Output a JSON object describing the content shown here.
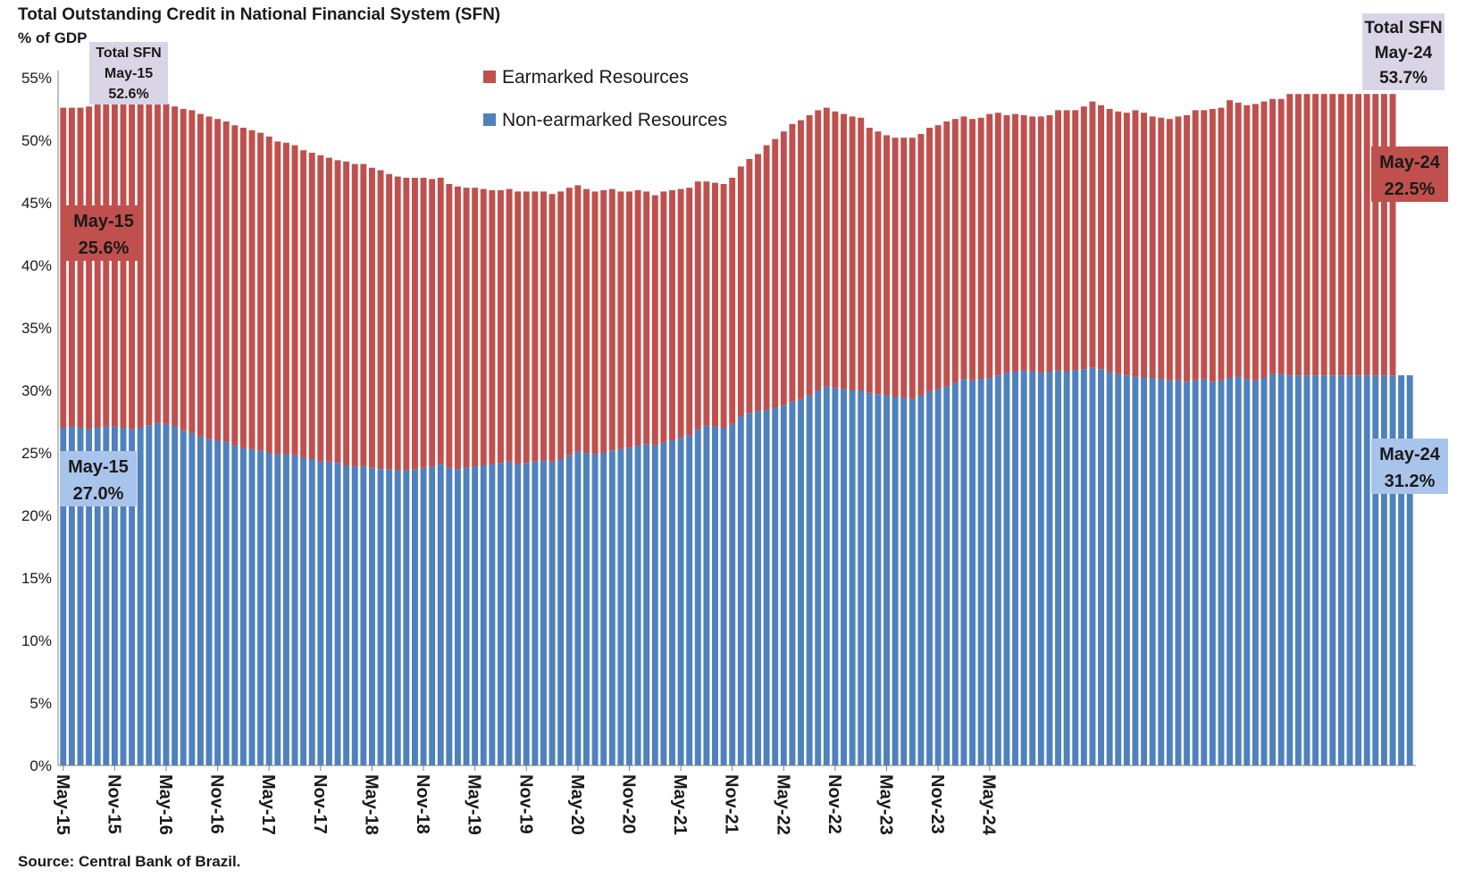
{
  "header": {
    "title": "Total Outstanding Credit in National Financial System (SFN)",
    "subtitle": "% of GDP"
  },
  "footer": {
    "source": "Source: Central Bank of Brazil."
  },
  "colors": {
    "earmarked": "#c0504d",
    "non_earmarked": "#4f81bd",
    "total_box": "#d9d5e6",
    "blue_box": "#a9c4eb"
  },
  "annotations": {
    "total_start": [
      "Total SFN",
      "May-15",
      "52.6%"
    ],
    "total_end": [
      "Total SFN",
      "May-24",
      "53.7%"
    ],
    "earmarked_start": [
      "May-15",
      "25.6%"
    ],
    "earmarked_end": [
      "May-24",
      "22.5%"
    ],
    "non_earmarked_start": [
      "May-15",
      "27.0%"
    ],
    "non_earmarked_end": [
      "May-24",
      "31.2%"
    ]
  },
  "chart_data": {
    "type": "bar",
    "stacked": true,
    "x_start": "May-15",
    "x_end": "May-24",
    "frequency": "monthly",
    "x_tick_labels": [
      "May-15",
      "Nov-15",
      "May-16",
      "Nov-16",
      "May-17",
      "Nov-17",
      "May-18",
      "Nov-18",
      "May-19",
      "Nov-19",
      "May-20",
      "Nov-20",
      "May-21",
      "Nov-21",
      "May-22",
      "Nov-22",
      "May-23",
      "Nov-23",
      "May-24"
    ],
    "y_tick_labels": [
      "0%",
      "5%",
      "10%",
      "15%",
      "20%",
      "25%",
      "30%",
      "35%",
      "40%",
      "45%",
      "50%",
      "55%"
    ],
    "ylim": [
      0,
      55
    ],
    "legend": [
      "Earmarked Resources",
      "Non-earmarked Resources"
    ],
    "legend_position": "top-center",
    "series": [
      {
        "name": "Non-earmarked Resources",
        "values": [
          27.0,
          27.1,
          27.0,
          26.9,
          27.0,
          27.1,
          27.1,
          27.0,
          26.9,
          27.0,
          27.2,
          27.4,
          27.3,
          27.1,
          26.8,
          26.6,
          26.3,
          26.1,
          26.0,
          25.9,
          25.6,
          25.4,
          25.3,
          25.2,
          25.0,
          24.9,
          24.9,
          24.8,
          24.6,
          24.5,
          24.3,
          24.3,
          24.2,
          24.0,
          23.9,
          23.9,
          23.8,
          23.7,
          23.7,
          23.6,
          23.6,
          23.7,
          23.8,
          23.9,
          24.1,
          23.8,
          23.7,
          23.8,
          23.9,
          24.0,
          24.1,
          24.2,
          24.3,
          24.1,
          24.2,
          24.3,
          24.4,
          24.3,
          24.5,
          24.8,
          25.1,
          25.0,
          24.9,
          25.0,
          25.2,
          25.3,
          25.4,
          25.6,
          25.7,
          25.6,
          25.8,
          26.0,
          26.2,
          26.4,
          26.9,
          27.2,
          27.1,
          27.0,
          27.3,
          27.9,
          28.2,
          28.3,
          28.4,
          28.6,
          28.8,
          29.1,
          29.3,
          29.6,
          30.0,
          30.3,
          30.2,
          30.1,
          30.0,
          30.0,
          29.8,
          29.7,
          29.6,
          29.5,
          29.4,
          29.3,
          29.6,
          29.9,
          30.1,
          30.3,
          30.6,
          30.9,
          30.8,
          30.9,
          31.0,
          31.2,
          31.4,
          31.5,
          31.6,
          31.5,
          31.4,
          31.5,
          31.6,
          31.5,
          31.6,
          31.7,
          31.8,
          31.7,
          31.5,
          31.3,
          31.2,
          31.1,
          31.0,
          31.0,
          30.9,
          30.8,
          30.8,
          30.7,
          30.8,
          30.9,
          30.7,
          30.8,
          31.0,
          31.1,
          30.9,
          30.8,
          31.0,
          31.3,
          31.3,
          31.2,
          31.2,
          31.2,
          31.2,
          31.2,
          31.2,
          31.2,
          31.2,
          31.2,
          31.2,
          31.2,
          31.2,
          31.2,
          31.2,
          31.2
        ],
        "color": "#4f81bd"
      },
      {
        "name": "Earmarked Resources",
        "values": [
          25.6,
          25.5,
          25.6,
          25.8,
          26.0,
          26.1,
          26.2,
          26.3,
          26.4,
          26.2,
          26.0,
          25.8,
          25.6,
          25.6,
          25.7,
          25.8,
          25.8,
          25.8,
          25.7,
          25.6,
          25.6,
          25.6,
          25.5,
          25.4,
          25.3,
          25.0,
          24.9,
          24.8,
          24.6,
          24.5,
          24.5,
          24.3,
          24.2,
          24.3,
          24.2,
          24.2,
          24.0,
          23.9,
          23.6,
          23.5,
          23.4,
          23.3,
          23.2,
          23.0,
          22.9,
          22.7,
          22.6,
          22.4,
          22.3,
          22.1,
          21.9,
          21.8,
          21.8,
          21.8,
          21.7,
          21.6,
          21.5,
          21.4,
          21.4,
          21.4,
          21.3,
          21.1,
          21.0,
          21.0,
          20.9,
          20.6,
          20.5,
          20.4,
          20.2,
          20.0,
          20.1,
          20.0,
          19.9,
          19.8,
          19.8,
          19.5,
          19.5,
          19.5,
          19.7,
          20.0,
          20.3,
          20.6,
          21.2,
          21.5,
          21.9,
          22.2,
          22.3,
          22.4,
          22.4,
          22.3,
          22.1,
          22.0,
          21.9,
          21.8,
          21.2,
          21.0,
          20.8,
          20.7,
          20.8,
          20.9,
          20.9,
          21.1,
          21.1,
          21.2,
          21.1,
          21.0,
          20.9,
          20.9,
          21.1,
          21.0,
          20.6,
          20.6,
          20.4,
          20.4,
          20.5,
          20.5,
          20.8,
          20.9,
          20.8,
          21.0,
          21.3,
          21.1,
          21.0,
          21.0,
          21.0,
          21.3,
          21.2,
          20.9,
          20.9,
          20.9,
          21.1,
          21.3,
          21.6,
          21.5,
          21.8,
          21.8,
          22.2,
          21.9,
          21.9,
          22.1,
          22.1,
          22.0,
          22.0,
          22.5,
          22.5,
          22.5,
          22.5,
          22.5,
          22.5,
          22.5,
          22.5,
          22.5,
          22.5,
          22.5,
          22.5,
          22.5
        ],
        "color": "#c0504d"
      }
    ]
  }
}
